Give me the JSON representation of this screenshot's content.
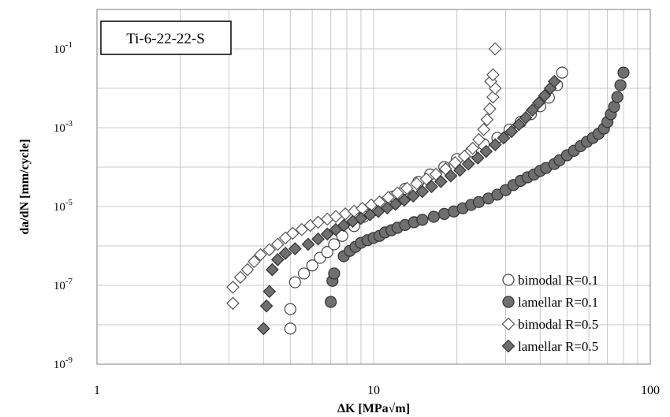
{
  "chart_data": {
    "type": "scatter",
    "title": "Ti-6-22-22-S",
    "xlabel": "ΔK [MPa√m]",
    "ylabel": "da/dN [mm/cycle]",
    "xscale": "log",
    "yscale": "log",
    "xlim": [
      1,
      100
    ],
    "ylim": [
      1e-09,
      1
    ],
    "x_ticks": [
      {
        "value": 1,
        "label": "1"
      },
      {
        "value": 10,
        "label": "10"
      },
      {
        "value": 100,
        "label": "100"
      }
    ],
    "y_ticks": [
      {
        "value": 1e-09,
        "base": "10",
        "exp": "-9"
      },
      {
        "value": 1e-07,
        "base": "10",
        "exp": "-7"
      },
      {
        "value": 1e-05,
        "base": "10",
        "exp": "-5"
      },
      {
        "value": 0.001,
        "base": "10",
        "exp": "-3"
      },
      {
        "value": 0.1,
        "base": "10",
        "exp": "-1"
      }
    ],
    "grid": true,
    "legend_position": "bottom-right",
    "series": [
      {
        "name": "bimodal R=0.1",
        "marker": "circle",
        "fill": "#ffffff",
        "stroke": "#444444",
        "points": [
          [
            5.0,
            8e-09
          ],
          [
            5.0,
            2.5e-08
          ],
          [
            5.2,
            1.2e-07
          ],
          [
            5.6,
            2e-07
          ],
          [
            6.0,
            3.2e-07
          ],
          [
            6.4,
            5e-07
          ],
          [
            6.8,
            7e-07
          ],
          [
            7.2,
            1.1e-06
          ],
          [
            7.7,
            1.8e-06
          ],
          [
            8.5,
            3.2e-06
          ],
          [
            9.2,
            5.5e-06
          ],
          [
            10.0,
            8e-06
          ],
          [
            10.8,
            1.2e-05
          ],
          [
            11.8,
            1.8e-05
          ],
          [
            13.0,
            2.8e-05
          ],
          [
            14.5,
            4.2e-05
          ],
          [
            16.0,
            6.5e-05
          ],
          [
            18.0,
            0.0001
          ],
          [
            20.0,
            0.00016
          ],
          [
            22.5,
            0.00025
          ],
          [
            25.0,
            0.00038
          ],
          [
            28.0,
            0.00055
          ],
          [
            31.0,
            0.0009
          ],
          [
            34.0,
            0.0014
          ],
          [
            37.0,
            0.0022
          ],
          [
            40.0,
            0.0035
          ],
          [
            43.0,
            0.0058
          ],
          [
            46.0,
            0.012
          ],
          [
            48.0,
            0.025
          ]
        ]
      },
      {
        "name": "lamellar R=0.1",
        "marker": "circle",
        "fill": "#6f6f6f",
        "stroke": "#333333",
        "points": [
          [
            7.0,
            3.8e-08
          ],
          [
            7.1,
            1.3e-07
          ],
          [
            7.2,
            2e-07
          ],
          [
            7.8,
            5.5e-07
          ],
          [
            8.2,
            7.5e-07
          ],
          [
            8.6,
            9.5e-07
          ],
          [
            9.0,
            1.2e-06
          ],
          [
            9.5,
            1.4e-06
          ],
          [
            10.0,
            1.6e-06
          ],
          [
            10.5,
            1.8e-06
          ],
          [
            11.0,
            2.2e-06
          ],
          [
            11.6,
            2.5e-06
          ],
          [
            12.2,
            2.9e-06
          ],
          [
            13.0,
            3.4e-06
          ],
          [
            14.0,
            4e-06
          ],
          [
            15.0,
            4.6e-06
          ],
          [
            16.5,
            5.5e-06
          ],
          [
            18.0,
            6.5e-06
          ],
          [
            19.5,
            7.5e-06
          ],
          [
            21.0,
            9e-06
          ],
          [
            22.5,
            1.1e-05
          ],
          [
            24.0,
            1.3e-05
          ],
          [
            26.0,
            1.6e-05
          ],
          [
            28.0,
            2e-05
          ],
          [
            30.0,
            2.6e-05
          ],
          [
            32.0,
            3.5e-05
          ],
          [
            34.0,
            4.5e-05
          ],
          [
            36.0,
            5.5e-05
          ],
          [
            38.0,
            6.5e-05
          ],
          [
            40.0,
            8e-05
          ],
          [
            42.0,
            9.5e-05
          ],
          [
            45.0,
            0.00012
          ],
          [
            47.0,
            0.00015
          ],
          [
            50.0,
            0.0002
          ],
          [
            53.0,
            0.00026
          ],
          [
            56.0,
            0.00034
          ],
          [
            59.0,
            0.00044
          ],
          [
            62.0,
            0.00055
          ],
          [
            65.0,
            0.0007
          ],
          [
            68.0,
            0.00095
          ],
          [
            70.0,
            0.0014
          ],
          [
            72.0,
            0.0022
          ],
          [
            74.0,
            0.0034
          ],
          [
            76.0,
            0.006
          ],
          [
            78.0,
            0.012
          ],
          [
            80.0,
            0.025
          ]
        ]
      },
      {
        "name": "bimodal R=0.5",
        "marker": "diamond",
        "fill": "#ffffff",
        "stroke": "#555555",
        "points": [
          [
            3.1,
            3.5e-08
          ],
          [
            3.1,
            9e-08
          ],
          [
            3.3,
            1.6e-07
          ],
          [
            3.5,
            2.5e-07
          ],
          [
            3.7,
            4e-07
          ],
          [
            3.9,
            6e-07
          ],
          [
            4.2,
            8e-07
          ],
          [
            4.5,
            1.1e-06
          ],
          [
            4.8,
            1.6e-06
          ],
          [
            5.1,
            2.1e-06
          ],
          [
            5.5,
            2.6e-06
          ],
          [
            5.9,
            3.3e-06
          ],
          [
            6.3,
            4e-06
          ],
          [
            6.8,
            4.8e-06
          ],
          [
            7.3,
            5.6e-06
          ],
          [
            7.9,
            6.5e-06
          ],
          [
            8.5,
            7.6e-06
          ],
          [
            9.1,
            9e-06
          ],
          [
            9.8,
            1.1e-05
          ],
          [
            10.5,
            1.3e-05
          ],
          [
            11.3,
            1.7e-05
          ],
          [
            12.2,
            2.2e-05
          ],
          [
            13.2,
            2.9e-05
          ],
          [
            14.3,
            3.8e-05
          ],
          [
            15.5,
            5e-05
          ],
          [
            16.8,
            6.6e-05
          ],
          [
            18.2,
            9e-05
          ],
          [
            19.7,
            0.00013
          ],
          [
            21.3,
            0.00019
          ],
          [
            22.8,
            0.0003
          ],
          [
            24.0,
            0.0005
          ],
          [
            25.0,
            0.0009
          ],
          [
            25.7,
            0.0016
          ],
          [
            26.3,
            0.003
          ],
          [
            27.0,
            0.006
          ],
          [
            27.5,
            0.01
          ],
          [
            26.5,
            0.015
          ],
          [
            27.0,
            0.022
          ],
          [
            27.5,
            0.1
          ]
        ]
      },
      {
        "name": "lamellar R=0.5",
        "marker": "diamond",
        "fill": "#6f6f6f",
        "stroke": "#333333",
        "points": [
          [
            4.0,
            8e-09
          ],
          [
            4.1,
            3e-08
          ],
          [
            4.2,
            7e-08
          ],
          [
            4.3,
            2.5e-07
          ],
          [
            4.5,
            4.5e-07
          ],
          [
            4.8,
            6.5e-07
          ],
          [
            5.2,
            8.5e-07
          ],
          [
            5.8,
            1.1e-06
          ],
          [
            6.3,
            1.5e-06
          ],
          [
            6.8,
            2e-06
          ],
          [
            7.3,
            2.6e-06
          ],
          [
            7.8,
            3.3e-06
          ],
          [
            8.4,
            4.2e-06
          ],
          [
            9.0,
            5e-06
          ],
          [
            9.7,
            6.2e-06
          ],
          [
            10.4,
            7.5e-06
          ],
          [
            11.2,
            9.2e-06
          ],
          [
            12.0,
            1.15e-05
          ],
          [
            12.9,
            1.45e-05
          ],
          [
            13.9,
            1.85e-05
          ],
          [
            15.0,
            2.4e-05
          ],
          [
            16.2,
            3.2e-05
          ],
          [
            17.5,
            4.3e-05
          ],
          [
            19.0,
            6e-05
          ],
          [
            20.5,
            8.3e-05
          ],
          [
            22.0,
            0.00012
          ],
          [
            23.8,
            0.00017
          ],
          [
            25.5,
            0.00025
          ],
          [
            27.5,
            0.00037
          ],
          [
            29.5,
            0.00055
          ],
          [
            31.5,
            0.0008
          ],
          [
            33.5,
            0.0012
          ],
          [
            35.5,
            0.0018
          ],
          [
            37.5,
            0.0028
          ],
          [
            39.5,
            0.0043
          ],
          [
            41.5,
            0.0065
          ],
          [
            43.5,
            0.01
          ],
          [
            45.0,
            0.015
          ]
        ]
      }
    ]
  }
}
